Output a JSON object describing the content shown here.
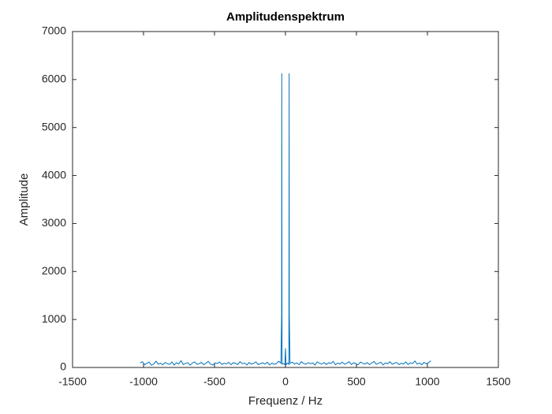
{
  "chart_data": {
    "type": "line",
    "title": "Amplitudenspektrum",
    "x_label": "Frequenz / Hz",
    "y_label": "Amplitude",
    "color": "#0072bd",
    "x": [
      -1024,
      -1008,
      -992,
      -976,
      -960,
      -944,
      -928,
      -912,
      -896,
      -880,
      -864,
      -848,
      -832,
      -816,
      -800,
      -784,
      -768,
      -752,
      -736,
      -720,
      -704,
      -688,
      -672,
      -656,
      -640,
      -624,
      -608,
      -592,
      -576,
      -560,
      -544,
      -528,
      -512,
      -496,
      -480,
      -464,
      -448,
      -432,
      -416,
      -400,
      -384,
      -368,
      -352,
      -336,
      -320,
      -304,
      -288,
      -272,
      -256,
      -240,
      -224,
      -208,
      -192,
      -176,
      -160,
      -144,
      -128,
      -112,
      -96,
      -80,
      -64,
      -48,
      -32,
      -27,
      -26,
      -25,
      -24,
      -16,
      -4,
      0,
      4,
      16,
      24,
      25,
      26,
      27,
      32,
      48,
      64,
      80,
      96,
      112,
      128,
      144,
      160,
      176,
      192,
      208,
      224,
      240,
      256,
      272,
      288,
      304,
      320,
      336,
      352,
      368,
      384,
      400,
      416,
      432,
      448,
      464,
      480,
      496,
      512,
      528,
      544,
      560,
      576,
      592,
      608,
      624,
      640,
      656,
      672,
      688,
      704,
      720,
      736,
      752,
      768,
      784,
      800,
      816,
      832,
      848,
      864,
      880,
      896,
      912,
      928,
      944,
      960,
      976,
      992,
      1008,
      1024
    ],
    "values": [
      95,
      120,
      60,
      88,
      110,
      45,
      75,
      130,
      70,
      90,
      55,
      105,
      80,
      65,
      115,
      50,
      98,
      72,
      140,
      60,
      85,
      100,
      48,
      92,
      118,
      66,
      78,
      104,
      58,
      88,
      126,
      70,
      52,
      96,
      83,
      112,
      64,
      90,
      74,
      108,
      56,
      99,
      86,
      62,
      121,
      77,
      94,
      50,
      103,
      69,
      88,
      115,
      60,
      82,
      97,
      71,
      109,
      54,
      91,
      66,
      80,
      130,
      90,
      1100,
      6130,
      2700,
      70,
      85,
      60,
      400,
      55,
      95,
      65,
      2700,
      6130,
      1100,
      85,
      110,
      72,
      95,
      58,
      120,
      84,
      66,
      101,
      79,
      93,
      52,
      117,
      88,
      70,
      105,
      61,
      99,
      83,
      128,
      57,
      92,
      74,
      110,
      68,
      86,
      120,
      63,
      97,
      80,
      55,
      113,
      89,
      71,
      102,
      60,
      94,
      125,
      67,
      85,
      108,
      53,
      96,
      78,
      119,
      65,
      90,
      104,
      59,
      87,
      73,
      115,
      62,
      98,
      81,
      135,
      70,
      93,
      57,
      107,
      76,
      100,
      140
    ],
    "xlim": [
      -1500,
      1500
    ],
    "xticks": [
      -1500,
      -1000,
      -500,
      0,
      500,
      1000,
      1500
    ],
    "ylim": [
      0,
      7000
    ],
    "yticks": [
      0,
      1000,
      2000,
      3000,
      4000,
      5000,
      6000,
      7000
    ]
  }
}
